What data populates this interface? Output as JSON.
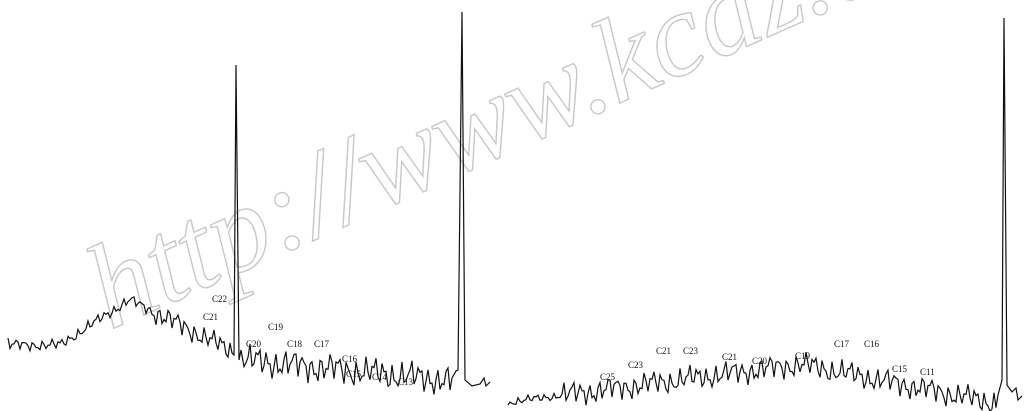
{
  "watermark": "http://www.kcdz.ac",
  "left_labels": [
    "C22",
    "C21",
    "C19",
    "C20",
    "C18",
    "C17",
    "C16",
    "C15",
    "C14",
    "C13"
  ],
  "right_labels": [
    "C25",
    "C23",
    "C21",
    "C23",
    "C21",
    "C20",
    "C19",
    "C17",
    "C16",
    "C15",
    "C11"
  ]
}
